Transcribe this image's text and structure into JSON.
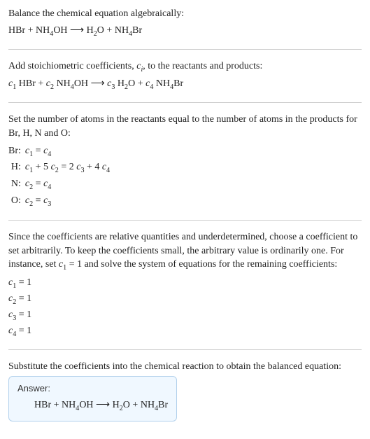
{
  "section1": {
    "title": "Balance the chemical equation algebraically:",
    "equation_parts": {
      "r1": "HBr",
      "plus1": " + ",
      "r2a": "NH",
      "r2s": "4",
      "r2b": "OH",
      "arrow": "  ⟶  ",
      "p1a": "H",
      "p1s": "2",
      "p1b": "O",
      "plus2": " + ",
      "p2a": "NH",
      "p2s": "4",
      "p2b": "Br"
    }
  },
  "section2": {
    "text_a": "Add stoichiometric coefficients, ",
    "ci_c": "c",
    "ci_i": "i",
    "text_b": ", to the reactants and products:",
    "eq": {
      "c1c": "c",
      "c1i": "1",
      "sp1": " ",
      "r1": "HBr",
      "plus1": " + ",
      "c2c": "c",
      "c2i": "2",
      "sp2": " ",
      "r2a": "NH",
      "r2s": "4",
      "r2b": "OH",
      "arrow": "  ⟶  ",
      "c3c": "c",
      "c3i": "3",
      "sp3": " ",
      "p1a": "H",
      "p1s": "2",
      "p1b": "O",
      "plus2": " + ",
      "c4c": "c",
      "c4i": "4",
      "sp4": " ",
      "p2a": "NH",
      "p2s": "4",
      "p2b": "Br"
    }
  },
  "section3": {
    "title": "Set the number of atoms in the reactants equal to the number of atoms in the products for Br, H, N and O:",
    "rows": [
      {
        "el": "Br:",
        "lhs_c": "c",
        "lhs_i": "1",
        "mid": " = ",
        "rhs_c": "c",
        "rhs_i": "4"
      },
      {
        "el": "H:",
        "l1c": "c",
        "l1i": "1",
        "lplus": " + 5 ",
        "l2c": "c",
        "l2i": "2",
        "mid": " = 2 ",
        "r1c": "c",
        "r1i": "3",
        "rplus": " + 4 ",
        "r2c": "c",
        "r2i": "4"
      },
      {
        "el": "N:",
        "lhs_c": "c",
        "lhs_i": "2",
        "mid": " = ",
        "rhs_c": "c",
        "rhs_i": "4"
      },
      {
        "el": "O:",
        "lhs_c": "c",
        "lhs_i": "2",
        "mid": " = ",
        "rhs_c": "c",
        "rhs_i": "3"
      }
    ]
  },
  "section4": {
    "text_a": "Since the coefficients are relative quantities and underdetermined, choose a coefficient to set arbitrarily. To keep the coefficients small, the arbitrary value is ordinarily one. For instance, set ",
    "set_c": "c",
    "set_i": "1",
    "text_b": " = 1 and solve the system of equations for the remaining coefficients:",
    "coefs": [
      {
        "c": "c",
        "i": "1",
        "v": " = 1"
      },
      {
        "c": "c",
        "i": "2",
        "v": " = 1"
      },
      {
        "c": "c",
        "i": "3",
        "v": " = 1"
      },
      {
        "c": "c",
        "i": "4",
        "v": " = 1"
      }
    ]
  },
  "section5": {
    "title": "Substitute the coefficients into the chemical reaction to obtain the balanced equation:",
    "answer_label": "Answer:",
    "eq": {
      "r1": "HBr",
      "plus1": " + ",
      "r2a": "NH",
      "r2s": "4",
      "r2b": "OH",
      "arrow": "  ⟶  ",
      "p1a": "H",
      "p1s": "2",
      "p1b": "O",
      "plus2": " + ",
      "p2a": "NH",
      "p2s": "4",
      "p2b": "Br"
    }
  }
}
